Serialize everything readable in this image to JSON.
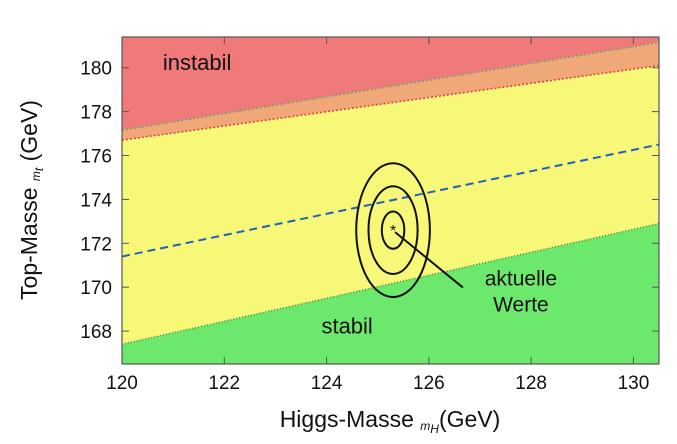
{
  "chart_data": {
    "type": "area",
    "xlabel_main": "Higgs-Masse ",
    "xlabel_sub": "m",
    "xlabel_subsub": "H",
    "xlabel_unit": "(GeV)",
    "ylabel_main": "Top-Masse ",
    "ylabel_sub": "m",
    "ylabel_subsub": "t",
    "ylabel_unit": " (GeV)",
    "xlim": [
      120,
      130.5
    ],
    "ylim": [
      166.5,
      181.4
    ],
    "xticks": [
      "120",
      "122",
      "124",
      "126",
      "128",
      "130"
    ],
    "yticks": [
      "168",
      "170",
      "172",
      "174",
      "176",
      "178",
      "180"
    ],
    "boundaries": {
      "instability_upper": {
        "x": [
          120,
          130.5
        ],
        "y": [
          177.15,
          181.15
        ]
      },
      "instability_lower": {
        "x": [
          120,
          130.5
        ],
        "y": [
          176.7,
          180.1
        ]
      },
      "stability": {
        "x": [
          120,
          130.5
        ],
        "y": [
          167.4,
          172.9
        ]
      },
      "dashed_blue": {
        "x": [
          120,
          130.5
        ],
        "y": [
          171.4,
          176.5
        ]
      }
    },
    "regions": [
      {
        "label": "instabil",
        "color": "#f07a7a"
      },
      {
        "label": "",
        "color": "#f0a878"
      },
      {
        "label": "",
        "color": "#f8f878"
      },
      {
        "label": "stabil",
        "color": "#6ce86c"
      }
    ],
    "measurement": {
      "center": {
        "x": 125.3,
        "y": 172.6
      },
      "ellipses": [
        {
          "sx": 0.22,
          "sy": 0.85
        },
        {
          "sx": 0.48,
          "sy": 2.0
        },
        {
          "sx": 0.72,
          "sy": 3.05
        }
      ],
      "label_line1": "aktuelle",
      "label_line2": "Werte",
      "label_anchor": {
        "x": 127.8,
        "y": 169.8
      }
    },
    "region_labels": [
      {
        "text": "instabil",
        "x": 120.8,
        "y": 179.9
      },
      {
        "text": "stabil",
        "x": 123.9,
        "y": 167.9
      }
    ],
    "colors": {
      "red_boundary": "#e04040",
      "green_boundary": "#448844",
      "dashed_line": "#2060c0",
      "frame": "#555555"
    }
  }
}
